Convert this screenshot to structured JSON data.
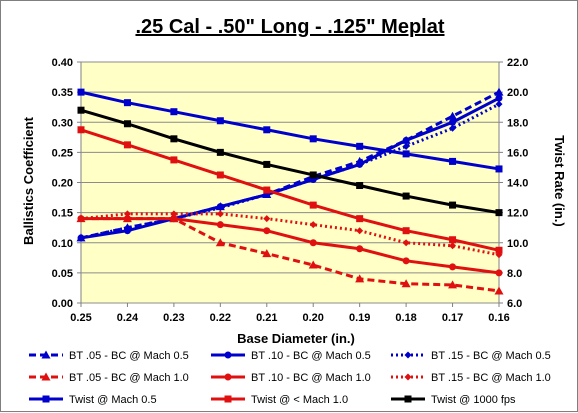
{
  "chart_data": {
    "type": "line",
    "title": ".25 Cal - .50\" Long - .125\" Meplat",
    "xlabel": "Base Diameter (in.)",
    "ylabel_left": "Ballistics Coefficient",
    "ylabel_right": "Twist Rate (in.)",
    "x": [
      0.25,
      0.24,
      0.23,
      0.22,
      0.21,
      0.2,
      0.19,
      0.18,
      0.17,
      0.16
    ],
    "x_tick_labels": [
      "0.25",
      "0.24",
      "0.23",
      "0.22",
      "0.21",
      "0.20",
      "0.19",
      "0.18",
      "0.17",
      "0.16"
    ],
    "ylim_left": [
      0.0,
      0.4
    ],
    "ylim_right": [
      6.0,
      22.0
    ],
    "y_left_ticks": [
      "0.00",
      "0.05",
      "0.10",
      "0.15",
      "0.20",
      "0.25",
      "0.30",
      "0.35",
      "0.40"
    ],
    "y_right_ticks": [
      "6.0",
      "8.0",
      "10.0",
      "12.0",
      "14.0",
      "16.0",
      "18.0",
      "20.0",
      "22.0"
    ],
    "grid": true,
    "legend_position": "bottom",
    "plot_background": "#ffffc6",
    "series": [
      {
        "name": "BT .05 - BC @ Mach 0.5",
        "axis": "left",
        "color": "#0000cc",
        "dash": "dashed",
        "marker": "triangle",
        "values": [
          0.108,
          0.125,
          0.14,
          0.16,
          0.18,
          0.21,
          0.235,
          0.27,
          0.31,
          0.35
        ]
      },
      {
        "name": "BT .10 - BC @ Mach 0.5",
        "axis": "left",
        "color": "#0000cc",
        "dash": "solid",
        "marker": "circle",
        "values": [
          0.108,
          0.12,
          0.14,
          0.16,
          0.18,
          0.205,
          0.23,
          0.27,
          0.3,
          0.34
        ]
      },
      {
        "name": "BT .15 - BC @ Mach 0.5",
        "axis": "left",
        "color": "#0000cc",
        "dash": "dotted",
        "marker": "diamond",
        "values": [
          0.108,
          0.125,
          0.14,
          0.158,
          0.18,
          0.205,
          0.23,
          0.26,
          0.29,
          0.33
        ]
      },
      {
        "name": "BT .05 - BC @ Mach 1.0",
        "axis": "left",
        "color": "#e01010",
        "dash": "dashed",
        "marker": "triangle",
        "values": [
          0.14,
          0.14,
          0.14,
          0.1,
          0.082,
          0.063,
          0.04,
          0.032,
          0.03,
          0.02
        ]
      },
      {
        "name": "BT .10 - BC @ Mach 1.0",
        "axis": "left",
        "color": "#e01010",
        "dash": "solid",
        "marker": "circle",
        "values": [
          0.14,
          0.14,
          0.14,
          0.13,
          0.12,
          0.1,
          0.09,
          0.07,
          0.06,
          0.05
        ]
      },
      {
        "name": "BT .15 - BC @  Mach 1.0",
        "axis": "left",
        "color": "#e01010",
        "dash": "dotted",
        "marker": "diamond",
        "values": [
          0.14,
          0.148,
          0.148,
          0.148,
          0.14,
          0.13,
          0.12,
          0.1,
          0.095,
          0.08
        ]
      },
      {
        "name": "Twist @ Mach 0.5",
        "axis": "right",
        "color": "#0000cc",
        "dash": "solid",
        "marker": "square",
        "values": [
          20.0,
          19.3,
          18.7,
          18.1,
          17.5,
          16.9,
          16.4,
          15.9,
          15.4,
          14.9
        ]
      },
      {
        "name": "Twist @ < Mach 1.0",
        "axis": "right",
        "color": "#e01010",
        "dash": "solid",
        "marker": "square",
        "values": [
          17.5,
          16.5,
          15.5,
          14.5,
          13.5,
          12.5,
          11.6,
          10.8,
          10.2,
          9.5
        ]
      },
      {
        "name": "Twist @ 1000 fps",
        "axis": "right",
        "color": "#000000",
        "dash": "solid",
        "marker": "square",
        "values": [
          18.8,
          17.9,
          16.9,
          16.0,
          15.2,
          14.5,
          13.8,
          13.1,
          12.5,
          12.0
        ]
      }
    ]
  }
}
